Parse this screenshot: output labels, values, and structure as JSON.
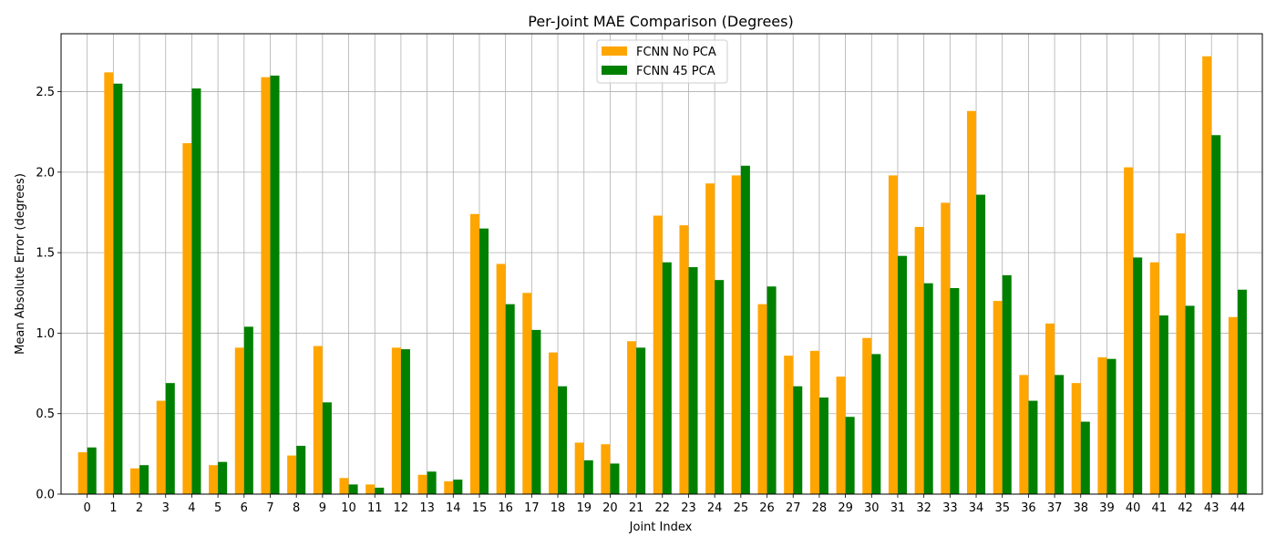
{
  "chart_data": {
    "type": "bar",
    "title": "Per-Joint MAE Comparison (Degrees)",
    "xlabel": "Joint Index",
    "ylabel": "Mean Absolute Error (degrees)",
    "ylim": [
      0,
      2.86
    ],
    "yticks": [
      "0.0",
      "0.5",
      "1.0",
      "1.5",
      "2.0",
      "2.5"
    ],
    "grid": true,
    "legend_position": "upper center",
    "categories": [
      "0",
      "1",
      "2",
      "3",
      "4",
      "5",
      "6",
      "7",
      "8",
      "9",
      "10",
      "11",
      "12",
      "13",
      "14",
      "15",
      "16",
      "17",
      "18",
      "19",
      "20",
      "21",
      "22",
      "23",
      "24",
      "25",
      "26",
      "27",
      "28",
      "29",
      "30",
      "31",
      "32",
      "33",
      "34",
      "35",
      "36",
      "37",
      "38",
      "39",
      "40",
      "41",
      "42",
      "43",
      "44"
    ],
    "series": [
      {
        "name": "FCNN No PCA",
        "color": "#ffa500",
        "values": [
          0.26,
          2.62,
          0.16,
          0.58,
          2.18,
          0.18,
          0.91,
          2.59,
          0.24,
          0.92,
          0.1,
          0.06,
          0.91,
          0.12,
          0.08,
          1.74,
          1.43,
          1.25,
          0.88,
          0.32,
          0.31,
          0.95,
          1.73,
          1.67,
          1.93,
          1.98,
          1.18,
          0.86,
          0.89,
          0.73,
          0.97,
          1.98,
          1.66,
          1.81,
          2.38,
          1.2,
          0.74,
          1.06,
          0.69,
          0.85,
          2.03,
          1.44,
          1.62,
          2.72,
          1.1
        ]
      },
      {
        "name": "FCNN 45 PCA",
        "color": "#008000",
        "values": [
          0.29,
          2.55,
          0.18,
          0.69,
          2.52,
          0.2,
          1.04,
          2.6,
          0.3,
          0.57,
          0.06,
          0.04,
          0.9,
          0.14,
          0.09,
          1.65,
          1.18,
          1.02,
          0.67,
          0.21,
          0.19,
          0.91,
          1.44,
          1.41,
          1.33,
          2.04,
          1.29,
          0.67,
          0.6,
          0.48,
          0.87,
          1.48,
          1.31,
          1.28,
          1.86,
          1.36,
          0.58,
          0.74,
          0.45,
          0.84,
          1.47,
          1.11,
          1.17,
          2.23,
          1.27
        ]
      }
    ]
  }
}
